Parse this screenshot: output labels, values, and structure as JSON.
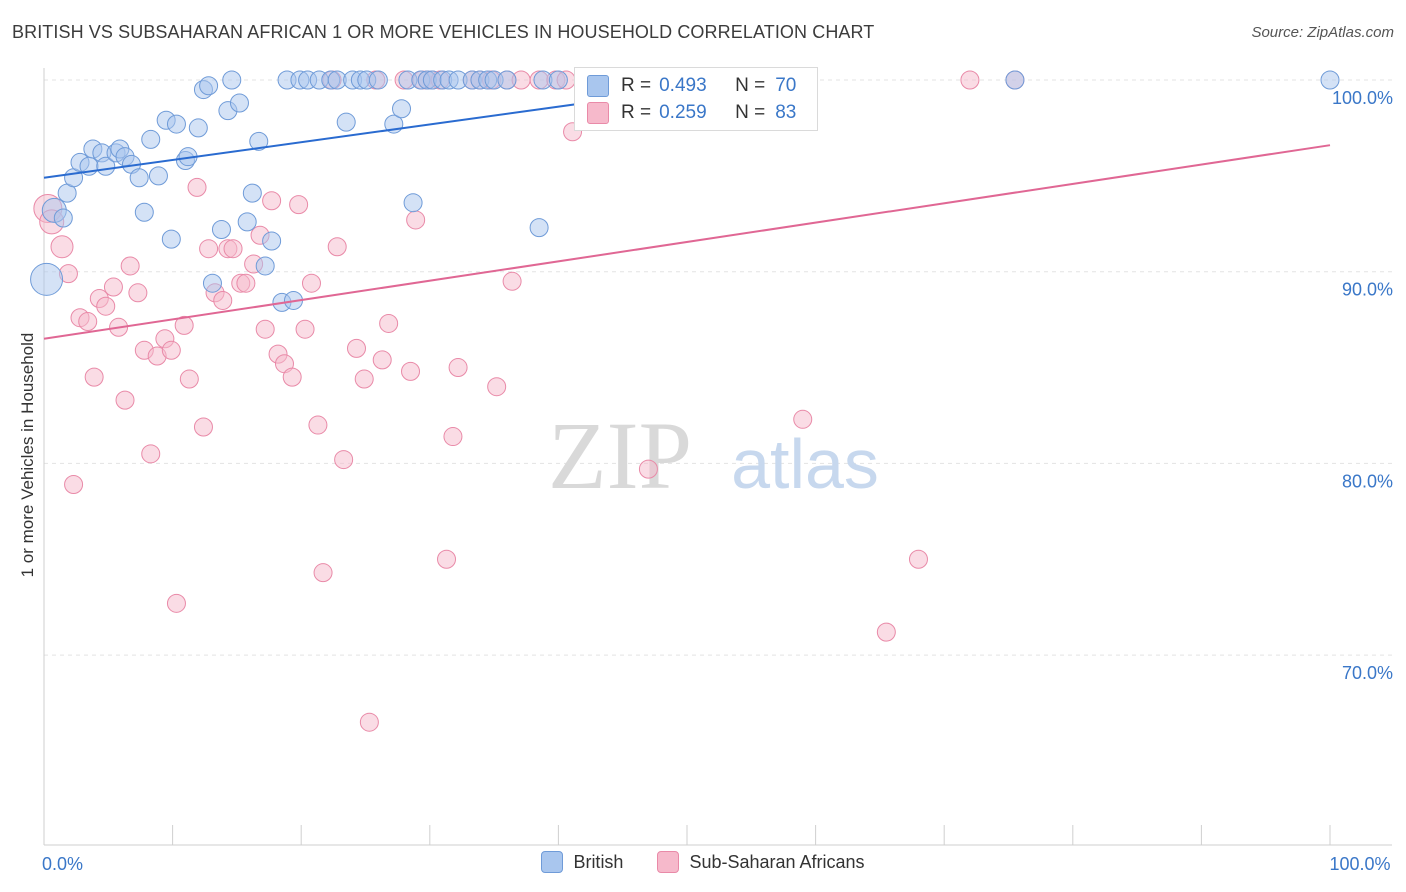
{
  "title": "BRITISH VS SUBSAHARAN AFRICAN 1 OR MORE VEHICLES IN HOUSEHOLD CORRELATION CHART",
  "source": "Source: ZipAtlas.com",
  "watermark": {
    "zip": "ZIP",
    "atlas": "atlas"
  },
  "colors": {
    "british_fill": "#a9c6ee",
    "british_stroke": "#6f9bd8",
    "british_line": "#2a6bd0",
    "ssa_fill": "#f6b9cb",
    "ssa_stroke": "#e98aa8",
    "ssa_line": "#e06794",
    "tick_label": "#3a77c8",
    "grid": "#e3e3e3"
  },
  "stats_legend": [
    {
      "series": "british",
      "r_label": "R =",
      "r_value": "0.493",
      "n_label": "N =",
      "n_value": "70"
    },
    {
      "series": "ssa",
      "r_label": "R =",
      "r_value": "0.259",
      "n_label": "N =",
      "n_value": "83"
    }
  ],
  "chart_data": {
    "type": "scatter",
    "title": "BRITISH VS SUBSAHARAN AFRICAN 1 OR MORE VEHICLES IN HOUSEHOLD CORRELATION CHART",
    "xlabel": "",
    "ylabel": "1 or more Vehicles in Household",
    "xlim": [
      0,
      100
    ],
    "ylim": [
      60.5,
      101.5
    ],
    "x_ticks": [
      {
        "value": 0,
        "label": "0.0%"
      },
      {
        "value": 100,
        "label": "100.0%"
      }
    ],
    "y_ticks": [
      {
        "value": 70,
        "label": "70.0%"
      },
      {
        "value": 80,
        "label": "80.0%"
      },
      {
        "value": 90,
        "label": "90.0%"
      },
      {
        "value": 100,
        "label": "100.0%"
      }
    ],
    "grid": true,
    "legend_position": "bottom-center",
    "series": [
      {
        "key": "british",
        "name": "British",
        "regression": {
          "x": [
            0,
            55
          ],
          "y": [
            94.9,
            100.0
          ]
        },
        "points": [
          [
            0.2,
            89.6,
            16
          ],
          [
            0.8,
            93.2,
            12
          ],
          [
            1.5,
            92.8,
            9
          ],
          [
            1.8,
            94.1,
            9
          ],
          [
            2.3,
            94.9,
            9
          ],
          [
            2.8,
            95.7,
            9
          ],
          [
            3.5,
            95.5,
            9
          ],
          [
            3.8,
            96.4,
            9
          ],
          [
            4.5,
            96.2,
            9
          ],
          [
            4.8,
            95.5,
            9
          ],
          [
            5.6,
            96.2,
            9
          ],
          [
            5.9,
            96.4,
            9
          ],
          [
            6.3,
            96.0,
            9
          ],
          [
            6.8,
            95.6,
            9
          ],
          [
            7.4,
            94.9,
            9
          ],
          [
            7.8,
            93.1,
            9
          ],
          [
            8.3,
            96.9,
            9
          ],
          [
            8.9,
            95.0,
            9
          ],
          [
            9.5,
            97.9,
            9
          ],
          [
            9.9,
            91.7,
            9
          ],
          [
            10.3,
            97.7,
            9
          ],
          [
            11.0,
            95.8,
            9
          ],
          [
            11.2,
            96.0,
            9
          ],
          [
            12.0,
            97.5,
            9
          ],
          [
            12.4,
            99.5,
            9
          ],
          [
            12.8,
            99.7,
            9
          ],
          [
            13.1,
            89.4,
            9
          ],
          [
            13.8,
            92.2,
            9
          ],
          [
            14.3,
            98.4,
            9
          ],
          [
            14.6,
            100.0,
            9
          ],
          [
            15.2,
            98.8,
            9
          ],
          [
            15.8,
            92.6,
            9
          ],
          [
            16.2,
            94.1,
            9
          ],
          [
            16.7,
            96.8,
            9
          ],
          [
            17.2,
            90.3,
            9
          ],
          [
            17.7,
            91.6,
            9
          ],
          [
            18.5,
            88.4,
            9
          ],
          [
            18.9,
            100.0,
            9
          ],
          [
            19.4,
            88.5,
            9
          ],
          [
            19.9,
            100.0,
            9
          ],
          [
            20.5,
            100.0,
            9
          ],
          [
            21.4,
            100.0,
            9
          ],
          [
            22.3,
            100.0,
            9
          ],
          [
            22.8,
            100.0,
            9
          ],
          [
            23.5,
            97.8,
            9
          ],
          [
            24.0,
            100.0,
            9
          ],
          [
            24.6,
            100.0,
            9
          ],
          [
            25.1,
            100.0,
            9
          ],
          [
            26.0,
            100.0,
            9
          ],
          [
            27.2,
            97.7,
            9
          ],
          [
            27.8,
            98.5,
            9
          ],
          [
            28.3,
            100.0,
            9
          ],
          [
            28.7,
            93.6,
            9
          ],
          [
            29.3,
            100.0,
            9
          ],
          [
            29.8,
            100.0,
            9
          ],
          [
            30.2,
            100.0,
            9
          ],
          [
            31.0,
            100.0,
            9
          ],
          [
            31.5,
            100.0,
            9
          ],
          [
            32.2,
            100.0,
            9
          ],
          [
            33.3,
            100.0,
            9
          ],
          [
            33.9,
            100.0,
            9
          ],
          [
            34.5,
            100.0,
            9
          ],
          [
            35.0,
            100.0,
            9
          ],
          [
            36.0,
            100.0,
            9
          ],
          [
            38.5,
            92.3,
            9
          ],
          [
            38.8,
            100.0,
            9
          ],
          [
            40.0,
            100.0,
            9
          ],
          [
            47.5,
            100.0,
            9
          ],
          [
            75.5,
            100.0,
            9
          ],
          [
            100.0,
            100.0,
            9
          ]
        ]
      },
      {
        "key": "ssa",
        "name": "Sub-Saharan Africans",
        "regression": {
          "x": [
            0,
            100
          ],
          "y": [
            86.5,
            96.6
          ]
        },
        "points": [
          [
            0.3,
            93.3,
            14
          ],
          [
            0.6,
            92.6,
            12
          ],
          [
            1.4,
            91.3,
            11
          ],
          [
            1.9,
            89.9,
            9
          ],
          [
            2.3,
            78.9,
            9
          ],
          [
            2.8,
            87.6,
            9
          ],
          [
            3.4,
            87.4,
            9
          ],
          [
            3.9,
            84.5,
            9
          ],
          [
            4.3,
            88.6,
            9
          ],
          [
            4.8,
            88.2,
            9
          ],
          [
            5.4,
            89.2,
            9
          ],
          [
            5.8,
            87.1,
            9
          ],
          [
            6.3,
            83.3,
            9
          ],
          [
            6.7,
            90.3,
            9
          ],
          [
            7.3,
            88.9,
            9
          ],
          [
            7.8,
            85.9,
            9
          ],
          [
            8.3,
            80.5,
            9
          ],
          [
            8.8,
            85.6,
            9
          ],
          [
            9.4,
            86.5,
            9
          ],
          [
            9.9,
            85.9,
            9
          ],
          [
            10.3,
            72.7,
            9
          ],
          [
            10.9,
            87.2,
            9
          ],
          [
            11.3,
            84.4,
            9
          ],
          [
            11.9,
            94.4,
            9
          ],
          [
            12.4,
            81.9,
            9
          ],
          [
            12.8,
            91.2,
            9
          ],
          [
            13.3,
            88.9,
            9
          ],
          [
            13.9,
            88.5,
            9
          ],
          [
            14.3,
            91.2,
            9
          ],
          [
            14.7,
            91.2,
            9
          ],
          [
            15.3,
            89.4,
            9
          ],
          [
            15.7,
            89.4,
            9
          ],
          [
            16.3,
            90.4,
            9
          ],
          [
            16.8,
            91.9,
            9
          ],
          [
            17.2,
            87.0,
            9
          ],
          [
            17.7,
            93.7,
            9
          ],
          [
            18.2,
            85.7,
            9
          ],
          [
            18.7,
            85.2,
            9
          ],
          [
            19.3,
            84.5,
            9
          ],
          [
            19.8,
            93.5,
            9
          ],
          [
            20.3,
            87.0,
            9
          ],
          [
            20.8,
            89.4,
            9
          ],
          [
            21.3,
            82.0,
            9
          ],
          [
            21.7,
            74.3,
            9
          ],
          [
            22.4,
            100.0,
            9
          ],
          [
            22.8,
            91.3,
            9
          ],
          [
            23.3,
            80.2,
            9
          ],
          [
            24.3,
            86.0,
            9
          ],
          [
            24.9,
            84.4,
            9
          ],
          [
            25.3,
            66.5,
            9
          ],
          [
            25.8,
            100.0,
            9
          ],
          [
            26.3,
            85.4,
            9
          ],
          [
            26.8,
            87.3,
            9
          ],
          [
            28.0,
            100.0,
            9
          ],
          [
            28.5,
            84.8,
            9
          ],
          [
            28.9,
            92.7,
            9
          ],
          [
            29.4,
            100.0,
            9
          ],
          [
            29.8,
            100.0,
            9
          ],
          [
            30.2,
            100.0,
            9
          ],
          [
            30.8,
            100.0,
            9
          ],
          [
            31.3,
            75.0,
            9
          ],
          [
            31.8,
            81.4,
            9
          ],
          [
            32.2,
            85.0,
            9
          ],
          [
            33.3,
            100.0,
            9
          ],
          [
            33.9,
            100.0,
            9
          ],
          [
            34.8,
            100.0,
            9
          ],
          [
            35.2,
            84.0,
            9
          ],
          [
            36.0,
            100.0,
            9
          ],
          [
            36.4,
            89.5,
            9
          ],
          [
            37.1,
            100.0,
            9
          ],
          [
            38.5,
            100.0,
            9
          ],
          [
            39.8,
            100.0,
            9
          ],
          [
            40.6,
            100.0,
            9
          ],
          [
            41.1,
            97.3,
            9
          ],
          [
            46.0,
            100.0,
            9
          ],
          [
            47.0,
            79.7,
            9
          ],
          [
            55.0,
            100.0,
            9
          ],
          [
            58.5,
            100.0,
            9
          ],
          [
            59.0,
            82.3,
            9
          ],
          [
            65.5,
            71.2,
            9
          ],
          [
            68.0,
            75.0,
            9
          ],
          [
            72.0,
            100.0,
            9
          ],
          [
            75.5,
            100.0,
            9
          ]
        ]
      }
    ]
  }
}
